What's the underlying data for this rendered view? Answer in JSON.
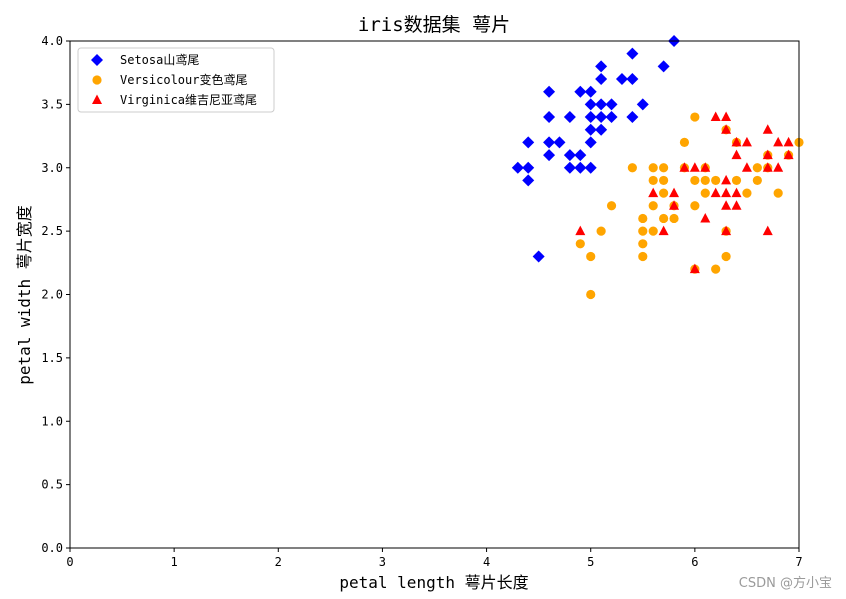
{
  "chart_data": {
    "type": "scatter",
    "title": "iris数据集 萼片",
    "xlabel": "petal length 萼片长度",
    "ylabel": "petal width 萼片宽度",
    "xlim": [
      0,
      7
    ],
    "ylim": [
      0,
      4.0
    ],
    "xticks": [
      "0",
      "1",
      "2",
      "3",
      "4",
      "5",
      "6",
      "7"
    ],
    "yticks": [
      "0.0",
      "0.5",
      "1.0",
      "1.5",
      "2.0",
      "2.5",
      "3.0",
      "3.5",
      "4.0"
    ],
    "grid": false,
    "legend_position": "upper-left",
    "series": [
      {
        "name": "Setosa山鸢尾",
        "marker": "diamond",
        "color": "#0000ff",
        "points": [
          [
            4.3,
            3.0
          ],
          [
            4.4,
            3.2
          ],
          [
            4.4,
            3.0
          ],
          [
            4.4,
            2.9
          ],
          [
            4.5,
            2.3
          ],
          [
            4.6,
            3.6
          ],
          [
            4.6,
            3.4
          ],
          [
            4.6,
            3.2
          ],
          [
            4.6,
            3.1
          ],
          [
            4.7,
            3.2
          ],
          [
            4.8,
            3.4
          ],
          [
            4.8,
            3.1
          ],
          [
            4.8,
            3.0
          ],
          [
            4.9,
            3.6
          ],
          [
            4.9,
            3.1
          ],
          [
            4.9,
            3.0
          ],
          [
            5.0,
            3.6
          ],
          [
            5.0,
            3.5
          ],
          [
            5.0,
            3.4
          ],
          [
            5.0,
            3.3
          ],
          [
            5.0,
            3.2
          ],
          [
            5.0,
            3.0
          ],
          [
            5.1,
            3.8
          ],
          [
            5.1,
            3.7
          ],
          [
            5.1,
            3.5
          ],
          [
            5.1,
            3.4
          ],
          [
            5.1,
            3.3
          ],
          [
            5.2,
            3.5
          ],
          [
            5.2,
            3.4
          ],
          [
            5.3,
            3.7
          ],
          [
            5.4,
            3.9
          ],
          [
            5.4,
            3.7
          ],
          [
            5.4,
            3.4
          ],
          [
            5.5,
            3.5
          ],
          [
            5.7,
            3.8
          ],
          [
            5.8,
            4.0
          ]
        ]
      },
      {
        "name": "Versicolour变色鸢尾",
        "marker": "circle",
        "color": "#ffa500",
        "points": [
          [
            4.9,
            2.4
          ],
          [
            5.0,
            2.3
          ],
          [
            5.0,
            2.0
          ],
          [
            5.1,
            2.5
          ],
          [
            5.2,
            2.7
          ],
          [
            5.4,
            3.0
          ],
          [
            5.5,
            2.6
          ],
          [
            5.5,
            2.5
          ],
          [
            5.5,
            2.4
          ],
          [
            5.5,
            2.3
          ],
          [
            5.6,
            3.0
          ],
          [
            5.6,
            2.9
          ],
          [
            5.6,
            2.7
          ],
          [
            5.6,
            2.5
          ],
          [
            5.7,
            3.0
          ],
          [
            5.7,
            2.9
          ],
          [
            5.7,
            2.8
          ],
          [
            5.7,
            2.6
          ],
          [
            5.8,
            2.7
          ],
          [
            5.8,
            2.6
          ],
          [
            5.9,
            3.2
          ],
          [
            5.9,
            3.0
          ],
          [
            6.0,
            3.4
          ],
          [
            6.0,
            2.9
          ],
          [
            6.0,
            2.7
          ],
          [
            6.0,
            2.2
          ],
          [
            6.1,
            3.0
          ],
          [
            6.1,
            2.9
          ],
          [
            6.1,
            2.8
          ],
          [
            6.2,
            2.9
          ],
          [
            6.2,
            2.2
          ],
          [
            6.3,
            3.3
          ],
          [
            6.3,
            2.5
          ],
          [
            6.3,
            2.3
          ],
          [
            6.4,
            3.2
          ],
          [
            6.4,
            2.9
          ],
          [
            6.5,
            2.8
          ],
          [
            6.6,
            3.0
          ],
          [
            6.6,
            2.9
          ],
          [
            6.7,
            3.1
          ],
          [
            6.7,
            3.0
          ],
          [
            6.8,
            2.8
          ],
          [
            6.9,
            3.1
          ],
          [
            7.0,
            3.2
          ]
        ]
      },
      {
        "name": "Virginica维吉尼亚鸢尾",
        "marker": "triangle",
        "color": "#ff0000",
        "points": [
          [
            4.9,
            2.5
          ],
          [
            5.6,
            2.8
          ],
          [
            5.7,
            2.5
          ],
          [
            5.8,
            2.8
          ],
          [
            5.8,
            2.7
          ],
          [
            5.9,
            3.0
          ],
          [
            6.0,
            3.0
          ],
          [
            6.0,
            2.2
          ],
          [
            6.1,
            3.0
          ],
          [
            6.1,
            2.6
          ],
          [
            6.2,
            3.4
          ],
          [
            6.2,
            2.8
          ],
          [
            6.3,
            3.4
          ],
          [
            6.3,
            3.3
          ],
          [
            6.3,
            2.9
          ],
          [
            6.3,
            2.8
          ],
          [
            6.3,
            2.7
          ],
          [
            6.3,
            2.5
          ],
          [
            6.4,
            3.2
          ],
          [
            6.4,
            3.1
          ],
          [
            6.4,
            2.8
          ],
          [
            6.4,
            2.7
          ],
          [
            6.5,
            3.2
          ],
          [
            6.5,
            3.0
          ],
          [
            6.7,
            3.3
          ],
          [
            6.7,
            3.1
          ],
          [
            6.7,
            3.0
          ],
          [
            6.7,
            2.5
          ],
          [
            6.8,
            3.2
          ],
          [
            6.8,
            3.0
          ],
          [
            6.9,
            3.2
          ],
          [
            6.9,
            3.1
          ]
        ]
      }
    ]
  },
  "watermark": "CSDN @方小宝"
}
